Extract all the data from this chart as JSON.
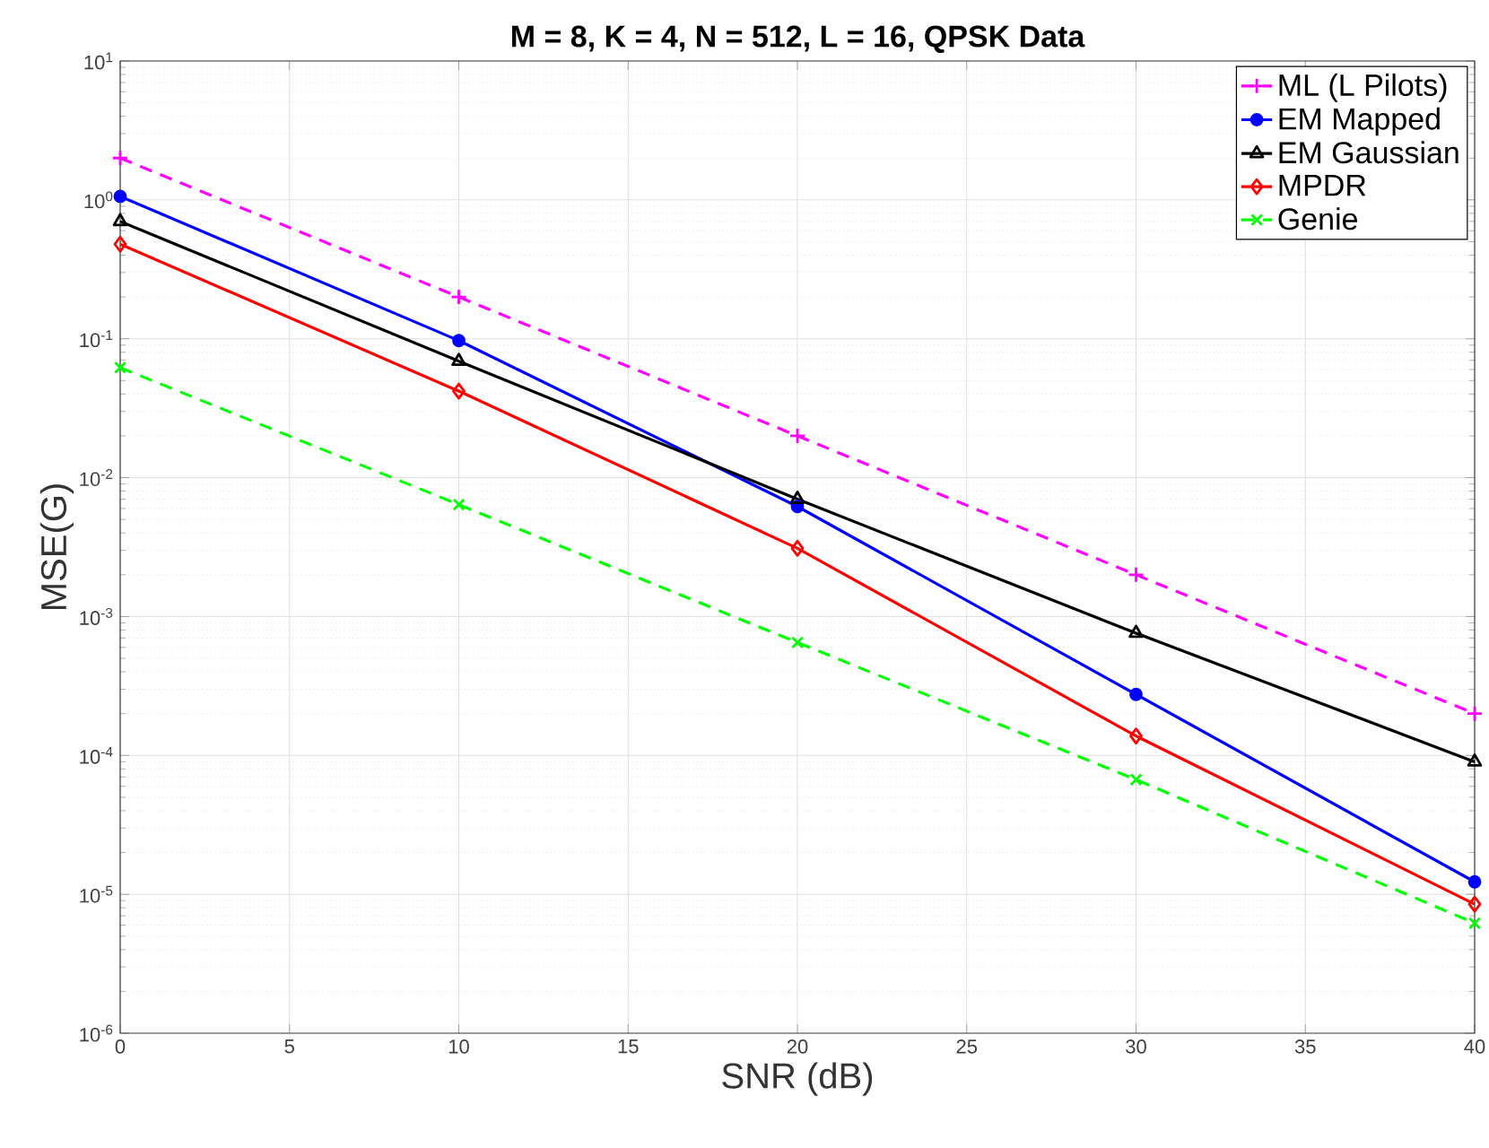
{
  "chart_data": {
    "type": "line",
    "title": "M = 8,  K = 4,  N = 512,  L = 16,  QPSK Data",
    "xlabel": "SNR (dB)",
    "ylabel": "MSE(G)",
    "x": [
      0,
      10,
      20,
      30,
      40
    ],
    "series": [
      {
        "name": "ML (L Pilots)",
        "color": "#ff00ff",
        "marker": "plus",
        "line_style": "dashed",
        "values": [
          2.0,
          0.2,
          0.02,
          0.002,
          0.0002
        ]
      },
      {
        "name": "EM Mapped",
        "color": "#0000ff",
        "marker": "circle",
        "line_style": "solid",
        "values": [
          1.06,
          0.097,
          0.0062,
          0.000275,
          1.23e-05
        ]
      },
      {
        "name": "EM Gaussian",
        "color": "#000000",
        "marker": "triangle",
        "line_style": "solid",
        "values": [
          0.7,
          0.069,
          0.007,
          0.00076,
          9e-05
        ]
      },
      {
        "name": "MPDR",
        "color": "#ff0000",
        "marker": "diamond",
        "line_style": "solid",
        "values": [
          0.48,
          0.042,
          0.0031,
          0.000138,
          8.5e-06
        ]
      },
      {
        "name": "Genie",
        "color": "#00ff00",
        "marker": "cross",
        "line_style": "dashed",
        "values": [
          0.062,
          0.0064,
          0.00065,
          6.7e-05,
          6.2e-06
        ]
      }
    ],
    "log": "y",
    "grid": true,
    "legend": "top right",
    "xlim": [
      0,
      40
    ],
    "xticks": [
      0,
      5,
      10,
      15,
      20,
      25,
      30,
      35,
      40
    ],
    "ylim": [
      1e-06,
      10
    ],
    "yticks": [
      {
        "value": 1e-06,
        "label": "10$^{-6}$"
      },
      {
        "value": 1e-05,
        "label": "10$^{-5}$"
      },
      {
        "value": 0.0001,
        "label": "10$^{-4}$"
      },
      {
        "value": 0.001,
        "label": "10$^{-3}$"
      },
      {
        "value": 0.01,
        "label": "10$^{-2}$"
      },
      {
        "value": 0.1,
        "label": "10$^{-1}$"
      },
      {
        "value": 1,
        "label": "10$^{0}$"
      },
      {
        "value": 10,
        "label": "10$^{1}$"
      }
    ]
  }
}
